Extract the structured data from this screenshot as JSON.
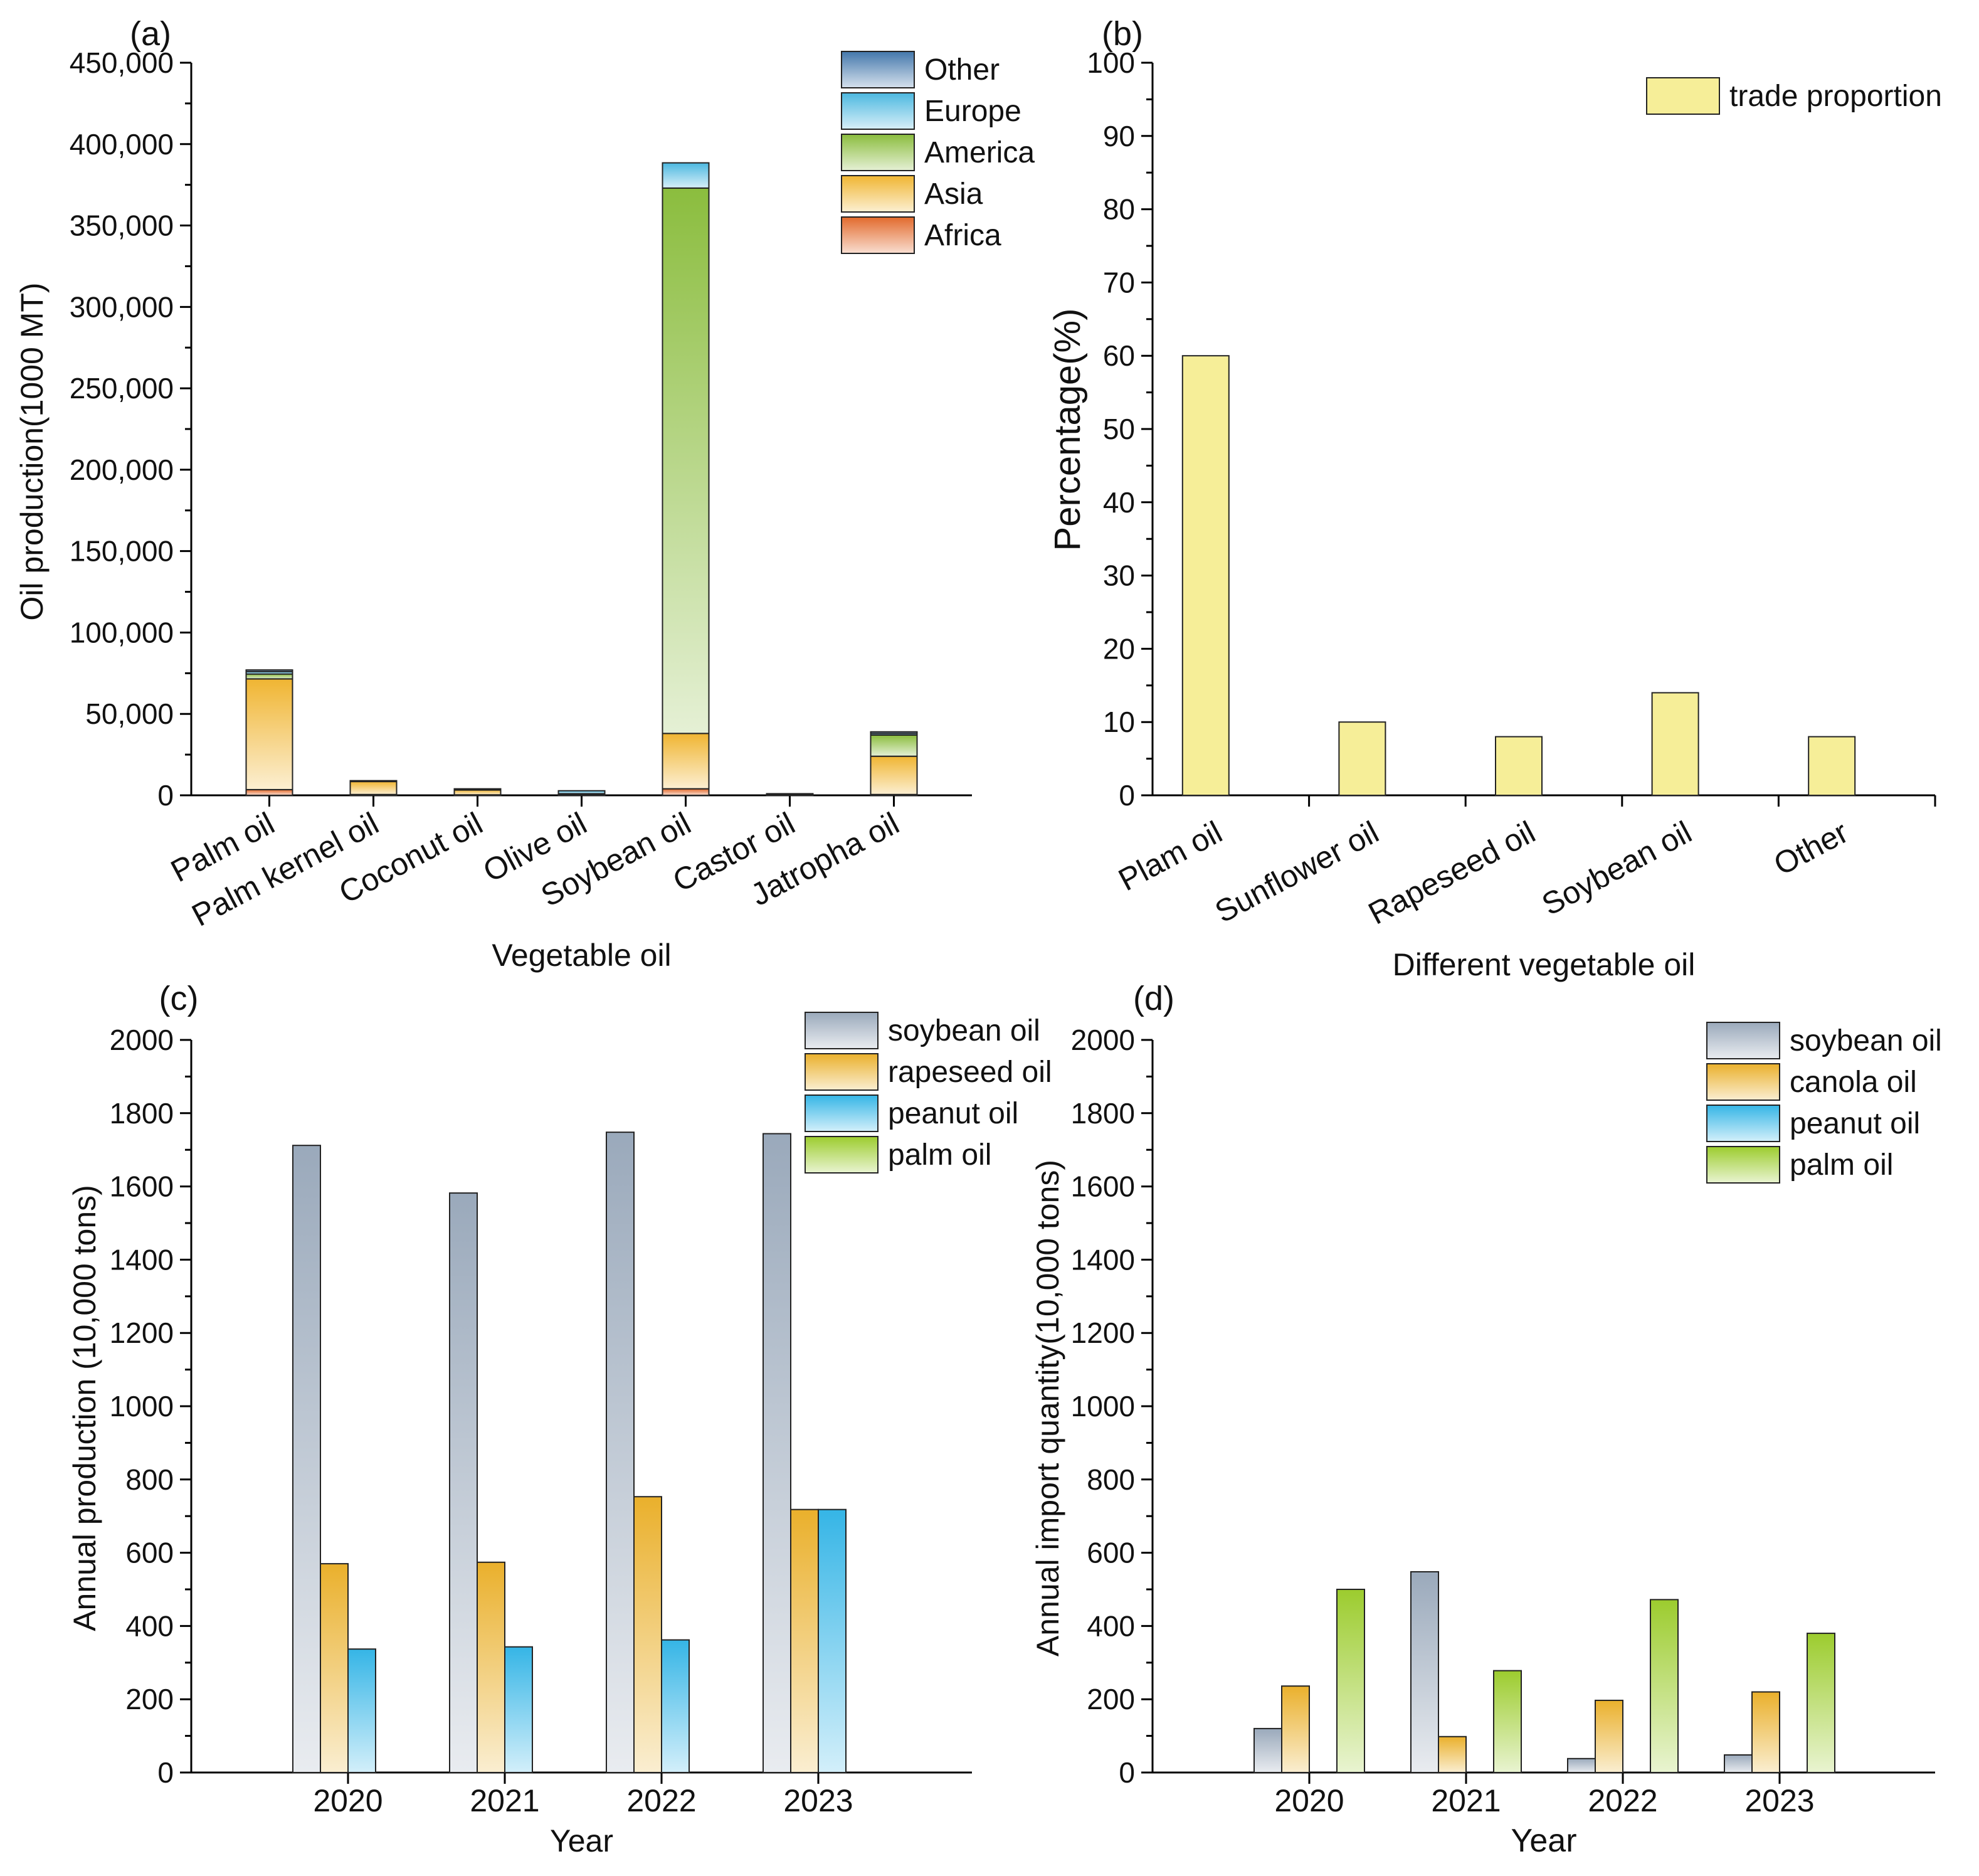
{
  "chart_data": [
    {
      "panel": "(a)",
      "type": "bar",
      "stacked": true,
      "xlabel": "Vegetable oil",
      "ylabel": "Oil production(1000 MT)",
      "ylim": [
        0,
        450000
      ],
      "yticks": [
        0,
        50000,
        100000,
        150000,
        200000,
        250000,
        300000,
        350000,
        400000,
        450000
      ],
      "ytick_labels": [
        "0",
        "50,000",
        "100,000",
        "150,000",
        "200,000",
        "250,000",
        "300,000",
        "350,000",
        "400,000",
        "450,000"
      ],
      "categories": [
        "Palm oil",
        "Palm kernel oil",
        "Coconut oil",
        "Olive oil",
        "Soybean oil",
        "Castor oil",
        "Jatropha oil"
      ],
      "series": [
        {
          "name": "Africa",
          "values": [
            3500,
            500,
            300,
            300,
            4000,
            200,
            500
          ]
        },
        {
          "name": "Asia",
          "values": [
            68000,
            8000,
            3000,
            500,
            34000,
            700,
            23500
          ]
        },
        {
          "name": "America",
          "values": [
            3000,
            300,
            300,
            200,
            335000,
            100,
            13000
          ]
        },
        {
          "name": "Europe",
          "values": [
            1500,
            200,
            200,
            1800,
            15500,
            0,
            1000
          ]
        },
        {
          "name": "Other",
          "values": [
            1000,
            0,
            200,
            0,
            0,
            0,
            1000
          ]
        }
      ],
      "legend_order": [
        "Other",
        "Europe",
        "America",
        "Asia",
        "Africa"
      ],
      "legend": "top-right",
      "colors": {
        "Africa": "#e26a2c",
        "Asia": "#f0b532",
        "America": "#8bbd3e",
        "Europe": "#4cb8e0",
        "Other": "#4377ab"
      }
    },
    {
      "panel": "(b)",
      "type": "bar",
      "xlabel": "Different vegetable oil",
      "ylabel": "Percentage(%)",
      "ylim": [
        0,
        100
      ],
      "yticks": [
        0,
        10,
        20,
        30,
        40,
        50,
        60,
        70,
        80,
        90,
        100
      ],
      "categories": [
        "Plam oil",
        "Sunflower oil",
        "Rapeseed oil",
        "Soybean oil",
        "Other"
      ],
      "series": [
        {
          "name": "trade proportion",
          "values": [
            60,
            10,
            8,
            14,
            8
          ]
        }
      ],
      "legend": "top-right",
      "colors": {
        "trade proportion": "#f6ee98"
      }
    },
    {
      "panel": "(c)",
      "type": "bar",
      "xlabel": "Year",
      "ylabel": "Annual production (10,000 tons)",
      "ylim": [
        0,
        2000
      ],
      "yticks": [
        0,
        200,
        400,
        600,
        800,
        1000,
        1200,
        1400,
        1600,
        1800,
        2000
      ],
      "categories": [
        "2020",
        "2021",
        "2022",
        "2023"
      ],
      "series": [
        {
          "name": "soybean oil",
          "values": [
            1712,
            1582,
            1748,
            1744
          ]
        },
        {
          "name": "rapeseed oil",
          "values": [
            570,
            574,
            753,
            718
          ]
        },
        {
          "name": "peanut oil",
          "values": [
            337,
            343,
            362,
            718
          ]
        },
        {
          "name": "palm oil",
          "values": [
            0,
            0,
            0,
            0
          ]
        }
      ],
      "legend": "top-right",
      "colors": {
        "soybean oil": "#9aa9bb",
        "rapeseed oil": "#eab02c",
        "peanut oil": "#35b5e6",
        "palm oil": "#9ccc2e"
      }
    },
    {
      "panel": "(d)",
      "type": "bar",
      "xlabel": "Year",
      "ylabel": "Annual import quantity(10,000 tons)",
      "ylim": [
        0,
        2000
      ],
      "yticks": [
        0,
        200,
        400,
        600,
        800,
        1000,
        1200,
        1400,
        1600,
        1800,
        2000
      ],
      "categories": [
        "2020",
        "2021",
        "2022",
        "2023"
      ],
      "series": [
        {
          "name": "soybean oil",
          "values": [
            120,
            548,
            38,
            48
          ]
        },
        {
          "name": "canola oil",
          "values": [
            236,
            98,
            197,
            220
          ]
        },
        {
          "name": "peanut oil",
          "values": [
            0,
            0,
            0,
            0
          ]
        },
        {
          "name": "palm oil",
          "values": [
            500,
            278,
            472,
            380
          ]
        }
      ],
      "legend": "top-right",
      "colors": {
        "soybean oil": "#9aa9bb",
        "canola oil": "#eab02c",
        "peanut oil": "#35b5e6",
        "palm oil": "#9ccc2e"
      }
    }
  ]
}
